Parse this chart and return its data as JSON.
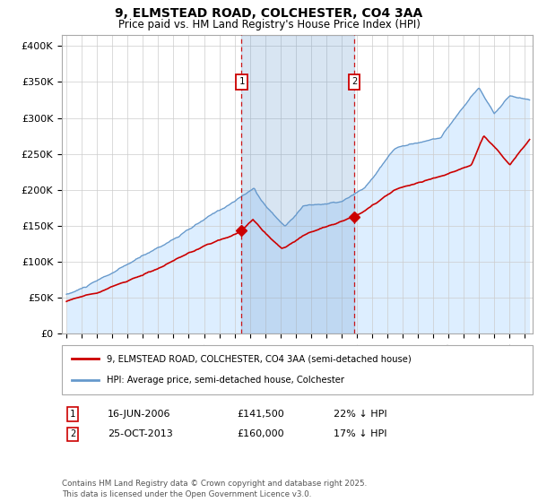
{
  "title": "9, ELMSTEAD ROAD, COLCHESTER, CO4 3AA",
  "subtitle": "Price paid vs. HM Land Registry's House Price Index (HPI)",
  "ylabel_ticks": [
    "£0",
    "£50K",
    "£100K",
    "£150K",
    "£200K",
    "£250K",
    "£300K",
    "£350K",
    "£400K"
  ],
  "ytick_values": [
    0,
    50000,
    100000,
    150000,
    200000,
    250000,
    300000,
    350000,
    400000
  ],
  "ylim": [
    0,
    415000
  ],
  "xlim_start": 1994.7,
  "xlim_end": 2025.5,
  "transaction1": {
    "year": 2006.46,
    "price": 141500,
    "label": "1",
    "hpi_pct": "22% ↓ HPI",
    "date": "16-JUN-2006"
  },
  "transaction2": {
    "year": 2013.82,
    "price": 160000,
    "label": "2",
    "hpi_pct": "17% ↓ HPI",
    "date": "25-OCT-2013"
  },
  "legend_entry1": "9, ELMSTEAD ROAD, COLCHESTER, CO4 3AA (semi-detached house)",
  "legend_entry2": "HPI: Average price, semi-detached house, Colchester",
  "footnote": "Contains HM Land Registry data © Crown copyright and database right 2025.\nThis data is licensed under the Open Government Licence v3.0.",
  "line_color_red": "#cc0000",
  "line_color_blue": "#6699cc",
  "fill_color_blue": "#ddeeff",
  "marker_box_color": "#cc0000",
  "vline_color": "#cc0000",
  "background_color": "#ffffff",
  "grid_color": "#cccccc",
  "spine_color": "#aaaaaa"
}
